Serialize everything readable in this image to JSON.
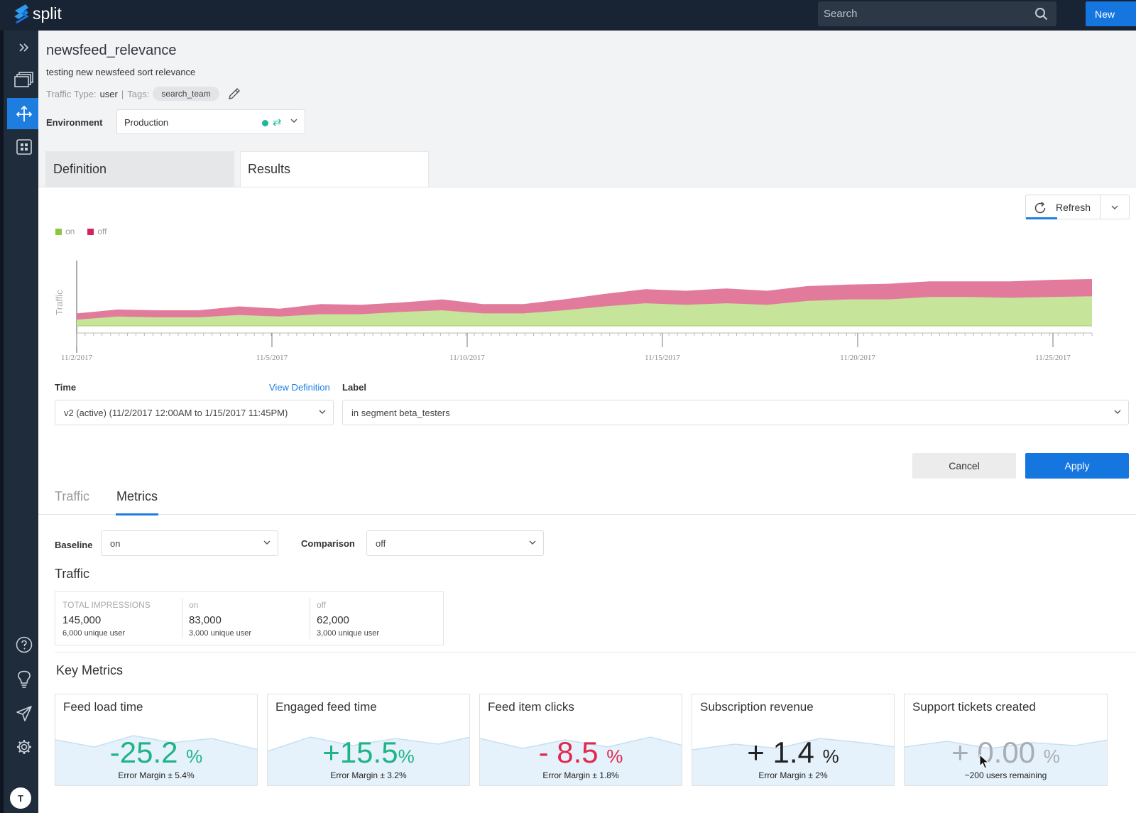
{
  "brand": {
    "name": "split"
  },
  "topbar": {
    "search_placeholder": "Search",
    "new_label": "New"
  },
  "nav": {
    "avatar_initial": "T"
  },
  "split": {
    "name": "newsfeed_relevance",
    "description": "testing new newsfeed sort relevance",
    "traffic_type_label": "Traffic Type:",
    "traffic_type": "user",
    "tags_label": "Tags:",
    "tag": "search_team"
  },
  "environment": {
    "label": "Environment",
    "value": "Production"
  },
  "tabs": {
    "definition": "Definition",
    "results": "Results"
  },
  "refresh_label": "Refresh",
  "chart_data": {
    "type": "area",
    "stacked": true,
    "ylabel": "Traffic",
    "x_ticks": [
      "11/2/2017",
      "11/5/2017",
      "11/10/2017",
      "11/15/2017",
      "11/20/2017",
      "11/25/2017"
    ],
    "series": [
      {
        "name": "on",
        "color": "#c6e49a",
        "values": [
          8,
          12,
          11,
          11,
          14,
          12,
          15,
          15,
          18,
          20,
          16,
          16,
          20,
          25,
          29,
          27,
          29,
          27,
          32,
          34,
          34,
          37,
          37,
          36,
          37,
          38
        ]
      },
      {
        "name": "off",
        "color": "#e27a9c",
        "values": [
          8,
          9,
          9,
          9,
          11,
          10,
          13,
          12,
          12,
          14,
          12,
          12,
          14,
          16,
          18,
          18,
          19,
          18,
          19,
          19,
          20,
          20,
          20,
          21,
          22,
          22
        ]
      }
    ]
  },
  "filters": {
    "time_label": "Time",
    "view_definition": "View Definition",
    "time_value": "v2 (active) (11/2/2017 12:00AM to 1/15/2017 11:45PM)",
    "label_label": "Label",
    "label_value": "in segment beta_testers",
    "cancel": "Cancel",
    "apply": "Apply"
  },
  "subtabs": {
    "traffic": "Traffic",
    "metrics": "Metrics"
  },
  "comparison": {
    "baseline_label": "Baseline",
    "baseline_value": "on",
    "comparison_label": "Comparison",
    "comparison_value": "off"
  },
  "traffic": {
    "title": "Traffic",
    "cells": [
      {
        "header": "TOTAL IMPRESSIONS",
        "value": "145,000",
        "sub": "6,000 unique user"
      },
      {
        "header": "on",
        "value": "83,000",
        "sub": "3,000 unique user"
      },
      {
        "header": "off",
        "value": "62,000",
        "sub": "3,000 unique user"
      }
    ]
  },
  "key_metrics": {
    "title": "Key Metrics",
    "cards": [
      {
        "title": "Feed load time",
        "value": "-25.2",
        "unit": "%",
        "sub": "Error Margin ± 5.4%",
        "color": "#1fb386"
      },
      {
        "title": "Engaged feed time",
        "value": "+15.5",
        "unit": "%",
        "sub": "Error Margin ± 3.2%",
        "color": "#1fb386"
      },
      {
        "title": "Feed item clicks",
        "value": "- 8.5",
        "unit": "%",
        "sub": "Error Margin ± 1.8%",
        "color": "#e0284f"
      },
      {
        "title": "Subscription revenue",
        "value": "+ 1.4",
        "unit": "%",
        "sub": "Error Margin ± 2%",
        "color": "#222222"
      },
      {
        "title": "Support tickets created",
        "value": "+ 0.00",
        "unit": "%",
        "sub": "~200 users remaining",
        "color": "#a9adb2"
      }
    ]
  }
}
